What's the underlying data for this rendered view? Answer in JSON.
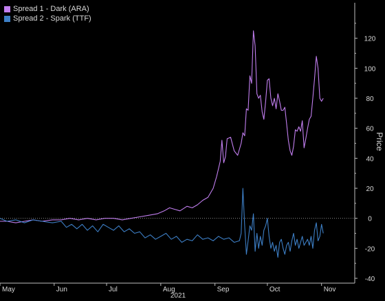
{
  "chart_data": {
    "type": "line",
    "ylabel": "Price",
    "ylim": [
      -40,
      140
    ],
    "yticks": [
      -40,
      -20,
      0,
      20,
      40,
      60,
      80,
      100,
      120
    ],
    "x_range": [
      "2021-05-01",
      "2021-11-20"
    ],
    "x_ticks": [
      {
        "label": "May",
        "date": "2021-05-01"
      },
      {
        "label": "Jun",
        "date": "2021-06-01"
      },
      {
        "label": "Jul",
        "date": "2021-07-01"
      },
      {
        "label": "Aug",
        "date": "2021-08-01"
      },
      {
        "label": "Sep",
        "date": "2021-09-01"
      },
      {
        "label": "Oct",
        "date": "2021-10-01"
      },
      {
        "label": "Nov",
        "date": "2021-11-01"
      }
    ],
    "x_year_label": "2021",
    "legend_position": "top-left",
    "grid": false,
    "series": [
      {
        "name": "Spread 1 - Dark (ARA)",
        "color": "#c27ff0",
        "points": [
          [
            "2021-05-01",
            -2
          ],
          [
            "2021-05-05",
            -2
          ],
          [
            "2021-05-10",
            -3
          ],
          [
            "2021-05-15",
            -2
          ],
          [
            "2021-05-20",
            -1
          ],
          [
            "2021-05-25",
            -2
          ],
          [
            "2021-05-31",
            -1
          ],
          [
            "2021-06-05",
            -1
          ],
          [
            "2021-06-10",
            0
          ],
          [
            "2021-06-15",
            -1
          ],
          [
            "2021-06-20",
            0
          ],
          [
            "2021-06-25",
            -1
          ],
          [
            "2021-06-30",
            0
          ],
          [
            "2021-07-05",
            0
          ],
          [
            "2021-07-10",
            -1
          ],
          [
            "2021-07-15",
            0
          ],
          [
            "2021-07-20",
            1
          ],
          [
            "2021-07-25",
            2
          ],
          [
            "2021-07-30",
            3
          ],
          [
            "2021-08-03",
            5
          ],
          [
            "2021-08-06",
            7
          ],
          [
            "2021-08-09",
            6
          ],
          [
            "2021-08-12",
            5
          ],
          [
            "2021-08-16",
            8
          ],
          [
            "2021-08-19",
            7
          ],
          [
            "2021-08-22",
            9
          ],
          [
            "2021-08-25",
            12
          ],
          [
            "2021-08-28",
            14
          ],
          [
            "2021-08-31",
            20
          ],
          [
            "2021-09-02",
            28
          ],
          [
            "2021-09-04",
            38
          ],
          [
            "2021-09-05",
            52
          ],
          [
            "2021-09-06",
            37
          ],
          [
            "2021-09-07",
            41
          ],
          [
            "2021-09-08",
            53
          ],
          [
            "2021-09-10",
            54
          ],
          [
            "2021-09-12",
            45
          ],
          [
            "2021-09-14",
            42
          ],
          [
            "2021-09-16",
            50
          ],
          [
            "2021-09-17",
            57
          ],
          [
            "2021-09-18",
            55
          ],
          [
            "2021-09-19",
            73
          ],
          [
            "2021-09-20",
            72
          ],
          [
            "2021-09-21",
            95
          ],
          [
            "2021-09-22",
            90
          ],
          [
            "2021-09-23",
            125
          ],
          [
            "2021-09-24",
            115
          ],
          [
            "2021-09-25",
            83
          ],
          [
            "2021-09-26",
            80
          ],
          [
            "2021-09-27",
            82
          ],
          [
            "2021-09-28",
            71
          ],
          [
            "2021-09-29",
            66
          ],
          [
            "2021-09-30",
            78
          ],
          [
            "2021-10-01",
            92
          ],
          [
            "2021-10-02",
            93
          ],
          [
            "2021-10-03",
            80
          ],
          [
            "2021-10-04",
            75
          ],
          [
            "2021-10-05",
            80
          ],
          [
            "2021-10-06",
            73
          ],
          [
            "2021-10-07",
            83
          ],
          [
            "2021-10-08",
            78
          ],
          [
            "2021-10-09",
            72
          ],
          [
            "2021-10-10",
            72
          ],
          [
            "2021-10-11",
            74
          ],
          [
            "2021-10-12",
            63
          ],
          [
            "2021-10-13",
            52
          ],
          [
            "2021-10-14",
            45
          ],
          [
            "2021-10-15",
            42
          ],
          [
            "2021-10-16",
            48
          ],
          [
            "2021-10-17",
            59
          ],
          [
            "2021-10-18",
            58
          ],
          [
            "2021-10-19",
            61
          ],
          [
            "2021-10-20",
            58
          ],
          [
            "2021-10-21",
            65
          ],
          [
            "2021-10-22",
            47
          ],
          [
            "2021-10-23",
            53
          ],
          [
            "2021-10-24",
            60
          ],
          [
            "2021-10-25",
            66
          ],
          [
            "2021-10-26",
            68
          ],
          [
            "2021-10-27",
            80
          ],
          [
            "2021-10-28",
            93
          ],
          [
            "2021-10-29",
            108
          ],
          [
            "2021-10-30",
            100
          ],
          [
            "2021-10-31",
            80
          ],
          [
            "2021-11-01",
            78
          ],
          [
            "2021-11-02",
            80
          ]
        ]
      },
      {
        "name": "Spread 2 - Spark (TTF)",
        "color": "#3d7fc6",
        "points": [
          [
            "2021-05-01",
            0
          ],
          [
            "2021-05-05",
            -2
          ],
          [
            "2021-05-10",
            -1
          ],
          [
            "2021-05-15",
            -3
          ],
          [
            "2021-05-20",
            -1
          ],
          [
            "2021-05-25",
            -2
          ],
          [
            "2021-05-31",
            -3
          ],
          [
            "2021-06-05",
            -2
          ],
          [
            "2021-06-08",
            -6
          ],
          [
            "2021-06-11",
            -4
          ],
          [
            "2021-06-14",
            -7
          ],
          [
            "2021-06-17",
            -4
          ],
          [
            "2021-06-20",
            -8
          ],
          [
            "2021-06-23",
            -5
          ],
          [
            "2021-06-26",
            -9
          ],
          [
            "2021-06-29",
            -4
          ],
          [
            "2021-07-02",
            -6
          ],
          [
            "2021-07-05",
            -8
          ],
          [
            "2021-07-08",
            -5
          ],
          [
            "2021-07-11",
            -9
          ],
          [
            "2021-07-14",
            -7
          ],
          [
            "2021-07-17",
            -10
          ],
          [
            "2021-07-20",
            -9
          ],
          [
            "2021-07-23",
            -13
          ],
          [
            "2021-07-26",
            -11
          ],
          [
            "2021-07-29",
            -14
          ],
          [
            "2021-08-01",
            -12
          ],
          [
            "2021-08-04",
            -10
          ],
          [
            "2021-08-07",
            -14
          ],
          [
            "2021-08-10",
            -12
          ],
          [
            "2021-08-13",
            -16
          ],
          [
            "2021-08-16",
            -14
          ],
          [
            "2021-08-19",
            -15
          ],
          [
            "2021-08-22",
            -11
          ],
          [
            "2021-08-25",
            -14
          ],
          [
            "2021-08-28",
            -13
          ],
          [
            "2021-08-31",
            -15
          ],
          [
            "2021-09-03",
            -12
          ],
          [
            "2021-09-06",
            -14
          ],
          [
            "2021-09-09",
            -13
          ],
          [
            "2021-09-12",
            -16
          ],
          [
            "2021-09-15",
            -15
          ],
          [
            "2021-09-16",
            -10
          ],
          [
            "2021-09-17",
            20
          ],
          [
            "2021-09-18",
            -5
          ],
          [
            "2021-09-19",
            -24
          ],
          [
            "2021-09-20",
            -15
          ],
          [
            "2021-09-21",
            -5
          ],
          [
            "2021-09-22",
            -8
          ],
          [
            "2021-09-23",
            3
          ],
          [
            "2021-09-24",
            -22
          ],
          [
            "2021-09-25",
            -10
          ],
          [
            "2021-09-26",
            -20
          ],
          [
            "2021-09-27",
            -12
          ],
          [
            "2021-09-28",
            -18
          ],
          [
            "2021-09-29",
            -8
          ],
          [
            "2021-09-30",
            -5
          ],
          [
            "2021-10-01",
            0
          ],
          [
            "2021-10-02",
            -12
          ],
          [
            "2021-10-03",
            -20
          ],
          [
            "2021-10-04",
            -16
          ],
          [
            "2021-10-05",
            -22
          ],
          [
            "2021-10-06",
            -18
          ],
          [
            "2021-10-07",
            -26
          ],
          [
            "2021-10-08",
            -16
          ],
          [
            "2021-10-09",
            -14
          ],
          [
            "2021-10-10",
            -20
          ],
          [
            "2021-10-11",
            -24
          ],
          [
            "2021-10-12",
            -18
          ],
          [
            "2021-10-13",
            -16
          ],
          [
            "2021-10-14",
            -22
          ],
          [
            "2021-10-15",
            -15
          ],
          [
            "2021-10-16",
            -10
          ],
          [
            "2021-10-17",
            -18
          ],
          [
            "2021-10-18",
            -14
          ],
          [
            "2021-10-19",
            -20
          ],
          [
            "2021-10-20",
            -16
          ],
          [
            "2021-10-21",
            -12
          ],
          [
            "2021-10-22",
            -18
          ],
          [
            "2021-10-23",
            -16
          ],
          [
            "2021-10-24",
            -14
          ],
          [
            "2021-10-25",
            -18
          ],
          [
            "2021-10-26",
            -12
          ],
          [
            "2021-10-27",
            -20
          ],
          [
            "2021-10-28",
            -8
          ],
          [
            "2021-10-29",
            -3
          ],
          [
            "2021-10-30",
            -15
          ],
          [
            "2021-10-31",
            -12
          ],
          [
            "2021-11-01",
            -4
          ],
          [
            "2021-11-02",
            -10
          ]
        ]
      }
    ]
  }
}
